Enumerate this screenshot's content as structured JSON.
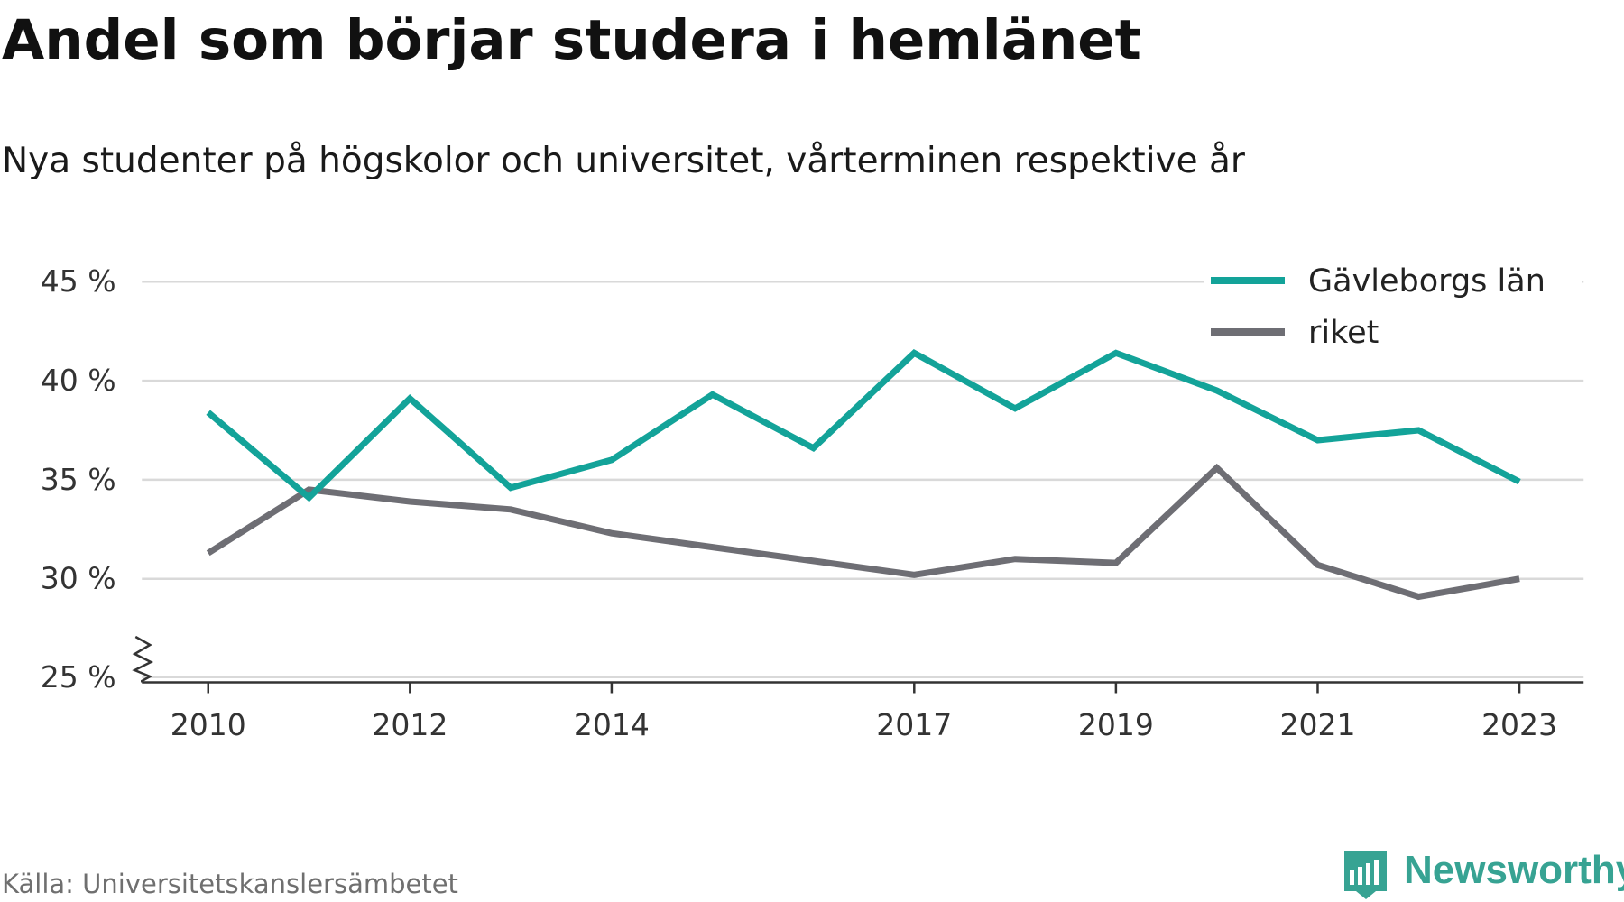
{
  "header": {
    "title": "Andel som börjar studera i hemlänet",
    "subtitle": "Nya studenter på högskolor och universitet, vårterminen respektive år"
  },
  "footer": {
    "source": "Källa: Universitetskanslersämbetet",
    "brand": "Newsworthy",
    "brand_icon": "bar-chart-icon",
    "brand_color": "#37a393"
  },
  "chart_data": {
    "type": "line",
    "x": [
      2010,
      2011,
      2012,
      2013,
      2014,
      2015,
      2016,
      2017,
      2018,
      2019,
      2020,
      2021,
      2022,
      2023
    ],
    "x_ticks": [
      2010,
      2012,
      2014,
      2017,
      2019,
      2021,
      2023
    ],
    "x_tick_labels": [
      "2010",
      "2012",
      "2014",
      "2017",
      "2019",
      "2021",
      "2023"
    ],
    "y_ticks": [
      25,
      30,
      35,
      40,
      45
    ],
    "y_tick_labels": [
      "25 %",
      "30 %",
      "35 %",
      "40 %",
      "45 %"
    ],
    "ylim": [
      25,
      45
    ],
    "y_axis_break": true,
    "grid": true,
    "legend_position": "top-right",
    "series": [
      {
        "name": "Gävleborgs län",
        "color": "#13a399",
        "values": [
          38.4,
          34.1,
          39.1,
          34.6,
          36.0,
          39.3,
          36.6,
          41.4,
          38.6,
          41.4,
          39.5,
          37.0,
          37.5,
          34.9
        ]
      },
      {
        "name": "riket",
        "color": "#6e6e74",
        "values": [
          31.3,
          34.5,
          33.9,
          33.5,
          32.3,
          31.6,
          30.9,
          30.2,
          31.0,
          30.8,
          35.6,
          30.7,
          29.1,
          30.0
        ]
      }
    ]
  }
}
